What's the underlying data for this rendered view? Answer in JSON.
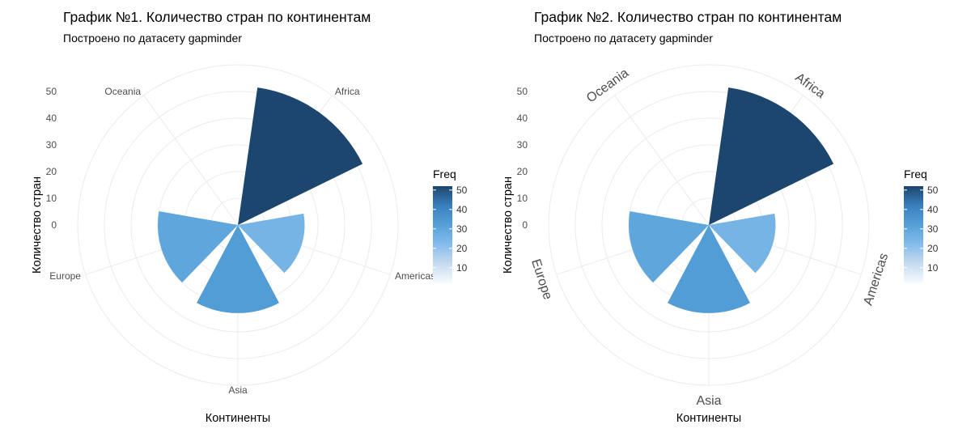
{
  "chart_data": [
    {
      "type": "polar-bar",
      "title": "График №1. Количество стран по континентам",
      "subtitle": "Построено по датасету gapminder",
      "xlabel": "Континенты",
      "ylabel": "Количество стран",
      "categories": [
        "Africa",
        "Americas",
        "Asia",
        "Europe",
        "Oceania"
      ],
      "values": [
        52,
        25,
        33,
        30,
        2
      ],
      "y_ticks": [
        0,
        10,
        20,
        30,
        40,
        50
      ],
      "ylim": [
        0,
        52
      ],
      "category_label_style": "horizontal",
      "legend": {
        "title": "Freq",
        "ticks": [
          10,
          20,
          30,
          40,
          50
        ],
        "range": [
          2,
          52
        ],
        "colors": [
          "#f7fbff",
          "#132b43"
        ],
        "position": "right"
      },
      "grid": true
    },
    {
      "type": "polar-bar",
      "title": "График №2. Количество стран по континентам",
      "subtitle": "Построено по датасету gapminder",
      "xlabel": "Континенты",
      "ylabel": "Количество стран",
      "categories": [
        "Africa",
        "Americas",
        "Asia",
        "Europe",
        "Oceania"
      ],
      "values": [
        52,
        25,
        33,
        30,
        2
      ],
      "y_ticks": [
        0,
        10,
        20,
        30,
        40,
        50
      ],
      "ylim": [
        0,
        52
      ],
      "category_label_style": "curved",
      "legend": {
        "title": "Freq",
        "ticks": [
          10,
          20,
          30,
          40,
          50
        ],
        "range": [
          2,
          52
        ],
        "colors": [
          "#f7fbff",
          "#132b43"
        ],
        "position": "right"
      },
      "grid": true
    }
  ]
}
